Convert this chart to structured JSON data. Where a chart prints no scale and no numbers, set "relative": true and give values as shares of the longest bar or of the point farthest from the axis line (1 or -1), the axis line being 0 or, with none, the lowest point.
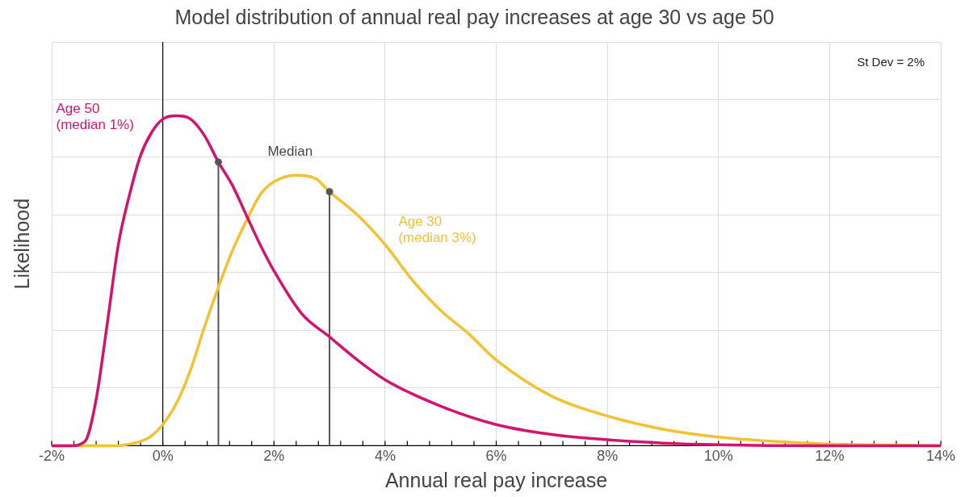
{
  "chart_data": {
    "type": "line",
    "title": "Model distribution of annual real pay increases at age 30 vs age 50",
    "xlabel": "Annual real pay increase",
    "ylabel": "Likelihood",
    "relative": true,
    "grid": true,
    "legend": false,
    "marker": "none",
    "line_style": "solid",
    "xlim": [
      -2,
      14
    ],
    "xticks": [
      {
        "value": -2,
        "label": "-2%"
      },
      {
        "value": -1.6,
        "label": null
      },
      {
        "value": -1.2,
        "label": null
      },
      {
        "value": -0.8,
        "label": null
      },
      {
        "value": -0.4,
        "label": null
      },
      {
        "value": 0,
        "label": "0%"
      },
      {
        "value": 0.4,
        "label": null
      },
      {
        "value": 0.8,
        "label": null
      },
      {
        "value": 1.2,
        "label": null
      },
      {
        "value": 1.6,
        "label": null
      },
      {
        "value": 2,
        "label": "2%"
      },
      {
        "value": 2.4,
        "label": null
      },
      {
        "value": 2.8,
        "label": null
      },
      {
        "value": 3.2,
        "label": null
      },
      {
        "value": 3.6,
        "label": null
      },
      {
        "value": 4,
        "label": "4%"
      },
      {
        "value": 4.4,
        "label": null
      },
      {
        "value": 4.8,
        "label": null
      },
      {
        "value": 5.2,
        "label": null
      },
      {
        "value": 5.6,
        "label": null
      },
      {
        "value": 6,
        "label": "6%"
      },
      {
        "value": 6.4,
        "label": null
      },
      {
        "value": 6.8,
        "label": null
      },
      {
        "value": 7.2,
        "label": null
      },
      {
        "value": 7.6,
        "label": null
      },
      {
        "value": 8,
        "label": "8%"
      },
      {
        "value": 8.4,
        "label": null
      },
      {
        "value": 8.8,
        "label": null
      },
      {
        "value": 9.2,
        "label": null
      },
      {
        "value": 9.6,
        "label": null
      },
      {
        "value": 10,
        "label": "10%"
      },
      {
        "value": 10.4,
        "label": null
      },
      {
        "value": 10.8,
        "label": null
      },
      {
        "value": 11.2,
        "label": null
      },
      {
        "value": 11.6,
        "label": null
      },
      {
        "value": 12,
        "label": "12%"
      },
      {
        "value": 12.4,
        "label": null
      },
      {
        "value": 12.8,
        "label": null
      },
      {
        "value": 13.2,
        "label": null
      },
      {
        "value": 13.6,
        "label": null
      },
      {
        "value": 14,
        "label": "14%"
      }
    ],
    "series": [
      {
        "name": "Age 50 (median 1%)",
        "color": "#d4146c",
        "x": [
          -2,
          -1.65,
          -1.4,
          -1.2,
          -1,
          -0.8,
          -0.6,
          -0.4,
          -0.2,
          0,
          0.25,
          0.5,
          0.75,
          1,
          1.25,
          1.5,
          1.75,
          2,
          2.5,
          3,
          3.5,
          4,
          5,
          6,
          7,
          8,
          9,
          10,
          12,
          14
        ],
        "values": [
          0,
          0,
          0.013,
          0.14,
          0.37,
          0.61,
          0.76,
          0.88,
          0.95,
          0.99,
          1,
          0.99,
          0.94,
          0.86,
          0.79,
          0.7,
          0.61,
          0.53,
          0.4,
          0.33,
          0.26,
          0.2,
          0.12,
          0.064,
          0.034,
          0.018,
          0.008,
          0.003,
          0,
          0
        ]
      },
      {
        "name": "Age 30 (median 3%)",
        "color": "#f2c233",
        "x": [
          -2,
          -0.8,
          -0.6,
          -0.4,
          -0.2,
          0,
          0.25,
          0.5,
          0.75,
          1,
          1.25,
          1.5,
          1.75,
          2,
          2.4,
          2.75,
          3,
          3.5,
          4,
          4.5,
          5,
          5.5,
          6,
          7,
          8,
          9,
          10,
          11,
          12,
          13,
          14
        ],
        "values": [
          0,
          0,
          0.005,
          0.013,
          0.03,
          0.064,
          0.13,
          0.23,
          0.36,
          0.48,
          0.59,
          0.68,
          0.76,
          0.8,
          0.82,
          0.81,
          0.77,
          0.7,
          0.61,
          0.5,
          0.41,
          0.34,
          0.26,
          0.15,
          0.09,
          0.05,
          0.026,
          0.013,
          0.005,
          0.002,
          0
        ]
      },
      {
        "type": "lollipop",
        "name": "Median",
        "color": "#555555",
        "marker": "circle",
        "x": [
          1,
          3
        ],
        "values": [
          0.86,
          0.77
        ]
      }
    ],
    "ref_lines": [
      {
        "axis": "x",
        "value": 0,
        "color": "#000000"
      }
    ],
    "annotations": [
      "St Dev = 2%"
    ]
  }
}
